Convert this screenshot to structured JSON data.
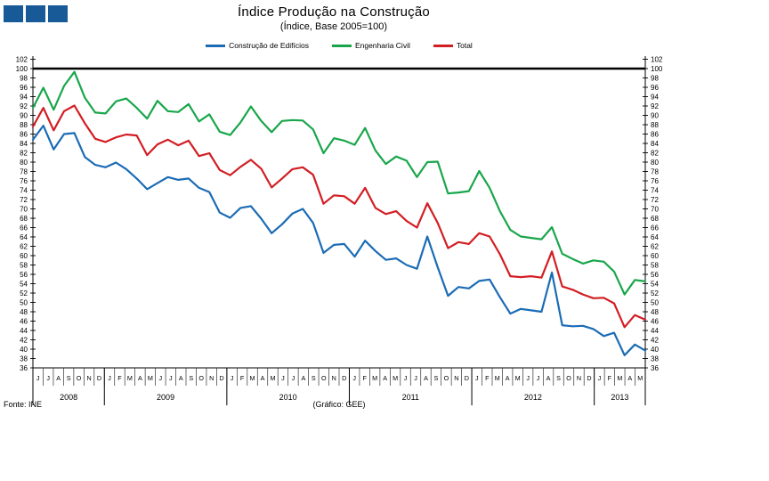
{
  "header": {
    "title": "Índice Produção na Construção",
    "subtitle": "(Índice,  Base 2005=100)"
  },
  "logo": {
    "square_color": "#175A97",
    "square_count": 3
  },
  "legend": [
    {
      "label": "Construção de Edifícios",
      "color": "#1B6CB5"
    },
    {
      "label": "Engenharia Civil",
      "color": "#19A64B"
    },
    {
      "label": "Total",
      "color": "#D21E23"
    }
  ],
  "footer": {
    "source": "Fonte:  INE",
    "credit": "(Gráfico:  GEE)"
  },
  "chart_data": {
    "type": "line",
    "title": "Índice Produção na Construção",
    "subtitle": "(Índice, Base 2005=100)",
    "x": {
      "months": [
        "J",
        "J",
        "A",
        "S",
        "O",
        "N",
        "D",
        "J",
        "F",
        "M",
        "A",
        "M",
        "J",
        "J",
        "A",
        "S",
        "O",
        "N",
        "D",
        "J",
        "F",
        "M",
        "A",
        "M",
        "J",
        "J",
        "A",
        "S",
        "O",
        "N",
        "D",
        "J",
        "F",
        "M",
        "A",
        "M",
        "J",
        "J",
        "A",
        "S",
        "O",
        "N",
        "D",
        "J",
        "F",
        "M",
        "A",
        "M",
        "J",
        "J",
        "A",
        "S",
        "O",
        "N",
        "D",
        "J",
        "F",
        "M",
        "A",
        "M"
      ],
      "years": [
        {
          "label": "2008",
          "months": 7
        },
        {
          "label": "2009",
          "months": 12
        },
        {
          "label": "2010",
          "months": 12
        },
        {
          "label": "2011",
          "months": 12
        },
        {
          "label": "2012",
          "months": 12
        },
        {
          "label": "2013",
          "months": 5
        }
      ]
    },
    "y_axis": {
      "min": 36,
      "max": 102,
      "step": 2,
      "reference_line": 100,
      "mirrored_right": true,
      "grid": false
    },
    "legend_position": "top",
    "series": [
      {
        "name": "Construção de Edifícios",
        "color": "#1B6CB5",
        "values": [
          84.8,
          87.8,
          82.7,
          86.0,
          86.2,
          81.1,
          79.4,
          78.9,
          79.9,
          78.5,
          76.5,
          74.2,
          75.5,
          76.8,
          76.2,
          76.5,
          74.5,
          73.6,
          69.2,
          68.1,
          70.2,
          70.6,
          67.9,
          64.8,
          66.7,
          69.0,
          70.0,
          67.0,
          60.6,
          62.3,
          62.5,
          59.8,
          63.2,
          61.0,
          59.1,
          59.4,
          58.0,
          57.2,
          64.1,
          57.5,
          51.4,
          53.3,
          53.0,
          54.6,
          54.9,
          51.1,
          47.6,
          48.6,
          48.3,
          48.0,
          56.4,
          45.1,
          44.9,
          45.0,
          44.3,
          42.8,
          43.5,
          38.7,
          41.0,
          39.7
        ]
      },
      {
        "name": "Engenharia Civil",
        "color": "#19A64B",
        "values": [
          91.6,
          95.9,
          91.2,
          96.3,
          99.3,
          93.8,
          90.6,
          90.4,
          93.0,
          93.6,
          91.6,
          89.3,
          93.1,
          90.9,
          90.7,
          92.4,
          88.7,
          90.2,
          86.5,
          85.8,
          88.5,
          91.9,
          88.8,
          86.4,
          88.8,
          89.0,
          88.9,
          87.0,
          81.9,
          85.1,
          84.6,
          83.7,
          87.3,
          82.5,
          79.6,
          81.2,
          80.3,
          76.8,
          80.0,
          80.1,
          73.3,
          73.5,
          73.8,
          78.1,
          74.5,
          69.5,
          65.5,
          64.1,
          63.8,
          63.5,
          66.1,
          60.4,
          59.3,
          58.3,
          59.0,
          58.7,
          56.6,
          51.7,
          54.8,
          54.5
        ]
      },
      {
        "name": "Total",
        "color": "#D21E23",
        "values": [
          87.6,
          91.6,
          86.8,
          90.9,
          92.1,
          88.3,
          85.0,
          84.3,
          85.3,
          85.9,
          85.7,
          81.5,
          83.8,
          84.8,
          83.6,
          84.6,
          81.3,
          81.9,
          78.3,
          77.2,
          79.0,
          80.5,
          78.6,
          74.6,
          76.5,
          78.5,
          78.9,
          77.3,
          71.1,
          72.9,
          72.7,
          71.1,
          74.5,
          70.2,
          68.9,
          69.5,
          67.4,
          66.0,
          71.2,
          67.0,
          61.6,
          62.9,
          62.5,
          64.8,
          64.1,
          60.3,
          55.6,
          55.4,
          55.6,
          55.3,
          60.9,
          53.4,
          52.7,
          51.7,
          50.9,
          51.0,
          49.8,
          44.7,
          47.3,
          46.3
        ]
      }
    ]
  }
}
